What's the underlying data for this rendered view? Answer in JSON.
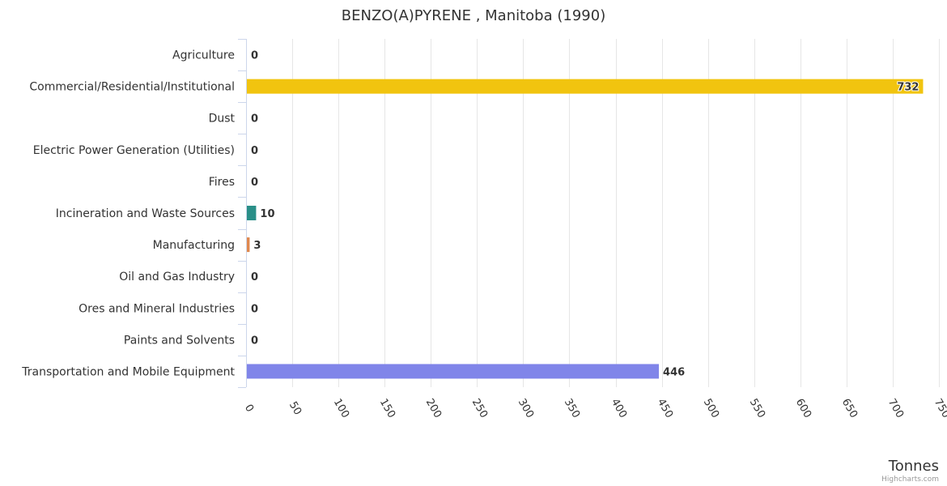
{
  "chart_data": {
    "type": "bar",
    "orientation": "horizontal",
    "title": "BENZO(A)PYRENE , Manitoba (1990)",
    "xlabel": "Tonnes",
    "ylabel": "",
    "categories": [
      "Agriculture",
      "Commercial/Residential/Institutional",
      "Dust",
      "Electric Power Generation (Utilities)",
      "Fires",
      "Incineration and Waste Sources",
      "Manufacturing",
      "Oil and Gas Industry",
      "Ores and Mineral Industries",
      "Paints and Solvents",
      "Transportation and Mobile Equipment"
    ],
    "values": [
      0,
      732,
      0,
      0,
      0,
      10,
      3,
      0,
      0,
      0,
      446
    ],
    "value_labels": [
      "0",
      "732",
      "0",
      "0",
      "0",
      "10",
      "3",
      "0",
      "0",
      "0",
      "446"
    ],
    "colors": [
      "#7cb5ec",
      "#f1c40f",
      "#2b908f",
      "#e4d354",
      "#f7a35c",
      "#2a8f88",
      "#e0884e",
      "#90ed7d",
      "#8085e9",
      "#f15c80",
      "#8085e9"
    ],
    "xlim": [
      0,
      750
    ],
    "ticks": [
      0,
      50,
      100,
      150,
      200,
      250,
      300,
      350,
      400,
      450,
      500,
      550,
      600,
      650,
      700,
      750
    ],
    "grid": true,
    "legend": "none"
  },
  "credits": "Highcharts.com"
}
